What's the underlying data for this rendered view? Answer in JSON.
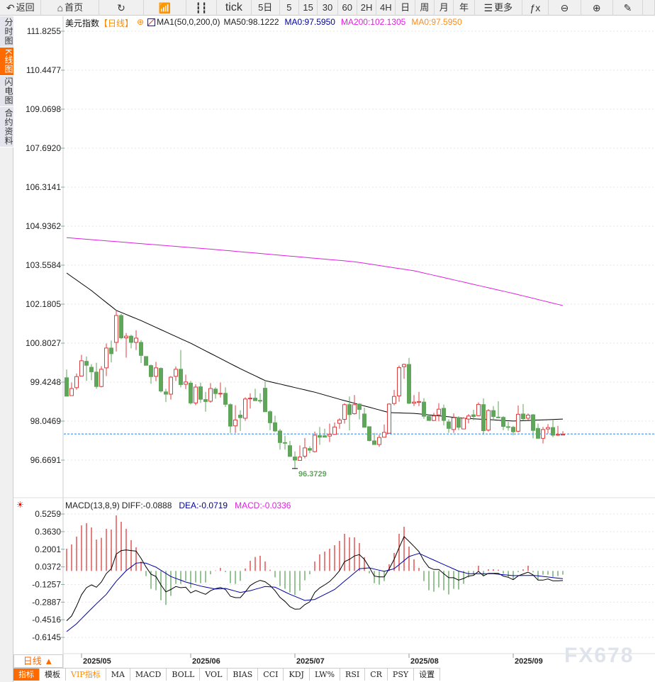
{
  "toolbar": {
    "items": [
      {
        "icon": "back-arrow-icon",
        "label": "返回",
        "w": 60
      },
      {
        "icon": "home-icon",
        "label": "首页",
        "w": 84
      },
      {
        "icon": "refresh-icon",
        "label": "",
        "w": 64
      },
      {
        "icon": "bar-chart-icon",
        "label": "",
        "w": 62
      },
      {
        "icon": "candlestick-icon",
        "label": "",
        "w": 44
      },
      {
        "icon": "",
        "label": "tick",
        "w": 50
      },
      {
        "icon": "",
        "label": "5日",
        "w": 41
      },
      {
        "icon": "",
        "label": "5",
        "w": 28
      },
      {
        "icon": "",
        "label": "15",
        "w": 27
      },
      {
        "icon": "",
        "label": "30",
        "w": 29
      },
      {
        "icon": "",
        "label": "60",
        "w": 28
      },
      {
        "icon": "",
        "label": "2H",
        "w": 28
      },
      {
        "icon": "",
        "label": "4H",
        "w": 28
      },
      {
        "icon": "",
        "label": "日",
        "w": 28
      },
      {
        "icon": "",
        "label": "周",
        "w": 28
      },
      {
        "icon": "",
        "label": "月",
        "w": 28
      },
      {
        "icon": "",
        "label": "年",
        "w": 30
      },
      {
        "icon": "menu-icon",
        "label": "更多",
        "w": 69
      },
      {
        "icon": "formula-icon",
        "label": "",
        "w": 38
      },
      {
        "icon": "zoom-out-icon",
        "label": "",
        "w": 47
      },
      {
        "icon": "zoom-in-icon",
        "label": "",
        "w": 46
      },
      {
        "icon": "pen-icon",
        "label": "",
        "w": 44
      },
      {
        "icon": "",
        "label": "",
        "w": 17
      }
    ]
  },
  "left_tabs": [
    {
      "label": "分时图",
      "active": false
    },
    {
      "label": "K线图",
      "active": true
    },
    {
      "label": "闪电图",
      "active": false
    },
    {
      "label": "合约资料",
      "active": false
    }
  ],
  "legend": {
    "name": "美元指数",
    "period": "【日线】",
    "indicator": "MA1(50,0,200,0)",
    "ma50": "MA50:98.1222",
    "ma0a": "MA0:97.5950",
    "ma200": "MA200:102.1305",
    "ma0b": "MA0:97.5950"
  },
  "macd_legend": {
    "name": "MACD(13,8,9)",
    "diff": "DIFF:-0.0888",
    "dea": "DEA:-0.0719",
    "macd": "MACD:-0.0336"
  },
  "colors": {
    "up": "#dc3c3c",
    "down": "#5fa55a",
    "ma50": "#000000",
    "ma200": "#e020e0",
    "diff": "#000000",
    "dea": "#0000a0",
    "last_price_line": "#1e82ff",
    "ma0b": "#ff8c1a"
  },
  "period_selector": "日线 ▲",
  "bottom_tabs": [
    {
      "label": "指标",
      "active": true
    },
    {
      "label": "模板"
    },
    {
      "label": "VIP指标",
      "vip": true
    },
    {
      "label": "MA"
    },
    {
      "label": "MACD"
    },
    {
      "label": "BOLL"
    },
    {
      "label": "VOL"
    },
    {
      "label": "BIAS"
    },
    {
      "label": "CCI"
    },
    {
      "label": "KDJ"
    },
    {
      "label": "LW%"
    },
    {
      "label": "RSI"
    },
    {
      "label": "CR"
    },
    {
      "label": "PSY"
    },
    {
      "label": "设置"
    }
  ],
  "watermark": "FX678",
  "chart_data": {
    "type": "candlestick",
    "price_ticks": [
      "111.8255",
      "110.4477",
      "109.0698",
      "107.6920",
      "106.3141",
      "104.9362",
      "103.5584",
      "102.1805",
      "100.8027",
      "99.4248",
      "98.0469",
      "96.6691"
    ],
    "macd_ticks": [
      "0.5259",
      "0.3630",
      "0.2001",
      "0.0372",
      "-0.1257",
      "-0.2887",
      "-0.4516",
      "-0.6145"
    ],
    "date_labels": [
      {
        "label": "2025/05",
        "index": 3
      },
      {
        "label": "2025/06",
        "index": 25
      },
      {
        "label": "2025/07",
        "index": 46
      },
      {
        "label": "2025/08",
        "index": 69
      },
      {
        "label": "2025/09",
        "index": 90
      }
    ],
    "low_label": {
      "text": "96.3729",
      "index": 46,
      "value": 96.3729
    },
    "last_price": 97.595,
    "ohlc": [
      [
        99.58,
        99.87,
        98.93,
        98.93
      ],
      [
        98.95,
        99.41,
        98.95,
        99.2
      ],
      [
        99.23,
        99.73,
        99.16,
        99.62
      ],
      [
        99.64,
        100.39,
        99.64,
        100.18
      ],
      [
        100.16,
        100.33,
        99.47,
        100.02
      ],
      [
        99.95,
        100.06,
        99.49,
        99.79
      ],
      [
        99.78,
        100.11,
        99.19,
        99.27
      ],
      [
        99.27,
        99.99,
        99.24,
        99.88
      ],
      [
        99.93,
        100.79,
        99.64,
        100.63
      ],
      [
        100.63,
        100.89,
        100.12,
        100.43
      ],
      [
        100.83,
        101.98,
        100.51,
        101.78
      ],
      [
        101.78,
        101.84,
        100.94,
        100.99
      ],
      [
        100.99,
        101.16,
        100.29,
        101.05
      ],
      [
        101.05,
        101.1,
        100.62,
        100.83
      ],
      [
        100.83,
        101.26,
        100.56,
        100.98
      ],
      [
        100.83,
        100.91,
        100.1,
        100.37
      ],
      [
        100.33,
        100.33,
        100.02,
        100.02
      ],
      [
        100.01,
        100.05,
        99.37,
        99.62
      ],
      [
        99.63,
        100.14,
        99.46,
        99.93
      ],
      [
        99.91,
        99.95,
        99.06,
        99.11
      ],
      [
        99.08,
        99.19,
        98.72,
        99.0
      ],
      [
        99.0,
        99.64,
        98.81,
        99.6
      ],
      [
        99.63,
        99.98,
        99.47,
        99.88
      ],
      [
        99.88,
        100.56,
        99.24,
        99.34
      ],
      [
        99.35,
        99.69,
        99.18,
        99.43
      ],
      [
        99.39,
        99.47,
        98.64,
        98.69
      ],
      [
        98.69,
        99.35,
        98.61,
        99.25
      ],
      [
        99.26,
        99.41,
        98.69,
        98.82
      ],
      [
        98.81,
        99.08,
        98.38,
        98.74
      ],
      [
        98.75,
        99.39,
        98.7,
        99.2
      ],
      [
        99.18,
        99.24,
        98.84,
        99.02
      ],
      [
        99.02,
        99.41,
        98.88,
        99.03
      ],
      [
        99.03,
        99.24,
        98.55,
        98.64
      ],
      [
        98.63,
        98.68,
        97.63,
        97.87
      ],
      [
        97.88,
        98.61,
        97.63,
        98.09
      ],
      [
        98.26,
        98.43,
        97.7,
        98.17
      ],
      [
        98.15,
        98.89,
        98.06,
        98.83
      ],
      [
        98.84,
        99.03,
        98.49,
        98.86
      ],
      [
        98.86,
        99.19,
        98.77,
        98.77
      ],
      [
        98.78,
        99.03,
        98.68,
        98.76
      ],
      [
        99.21,
        99.45,
        98.37,
        98.38
      ],
      [
        98.38,
        98.43,
        97.73,
        97.99
      ],
      [
        97.99,
        98.24,
        97.66,
        97.7
      ],
      [
        97.7,
        97.77,
        97.04,
        97.29
      ],
      [
        97.29,
        97.53,
        97.04,
        97.27
      ],
      [
        97.18,
        97.35,
        96.8,
        96.8
      ],
      [
        96.78,
        96.98,
        96.37,
        96.67
      ],
      [
        96.66,
        97.19,
        96.66,
        96.78
      ],
      [
        96.81,
        97.45,
        96.73,
        97.1
      ],
      [
        97.08,
        97.16,
        96.91,
        97.02
      ],
      [
        96.97,
        97.68,
        96.94,
        97.55
      ],
      [
        97.54,
        97.84,
        97.21,
        97.48
      ],
      [
        97.53,
        97.78,
        97.48,
        97.48
      ],
      [
        97.52,
        97.96,
        97.31,
        97.58
      ],
      [
        97.58,
        98.0,
        97.57,
        97.84
      ],
      [
        97.97,
        98.15,
        97.78,
        98.09
      ],
      [
        98.11,
        98.68,
        97.96,
        98.63
      ],
      [
        98.63,
        98.92,
        97.72,
        98.28
      ],
      [
        98.31,
        98.97,
        98.28,
        98.63
      ],
      [
        98.65,
        98.68,
        98.11,
        98.46
      ],
      [
        98.3,
        98.52,
        97.83,
        97.83
      ],
      [
        97.85,
        97.85,
        97.33,
        97.36
      ],
      [
        97.35,
        97.63,
        97.22,
        97.22
      ],
      [
        97.22,
        97.57,
        97.14,
        97.47
      ],
      [
        97.48,
        97.93,
        97.47,
        97.65
      ],
      [
        97.62,
        98.68,
        97.6,
        98.65
      ],
      [
        98.67,
        99.15,
        98.61,
        98.92
      ],
      [
        98.94,
        100.01,
        98.73,
        99.94
      ],
      [
        99.97,
        100.08,
        99.54,
        100.05
      ],
      [
        100.05,
        100.28,
        98.65,
        98.68
      ],
      [
        98.68,
        98.97,
        98.58,
        98.72
      ],
      [
        98.71,
        99.08,
        98.58,
        98.74
      ],
      [
        98.72,
        98.86,
        98.13,
        98.22
      ],
      [
        98.22,
        98.28,
        98.07,
        98.07
      ],
      [
        98.07,
        98.34,
        98.05,
        98.23
      ],
      [
        98.27,
        98.68,
        98.04,
        98.47
      ],
      [
        98.5,
        98.63,
        97.9,
        98.07
      ],
      [
        98.02,
        98.11,
        97.63,
        97.79
      ],
      [
        97.75,
        98.32,
        97.63,
        98.17
      ],
      [
        98.17,
        98.22,
        97.73,
        97.83
      ],
      [
        97.77,
        98.19,
        97.77,
        98.15
      ],
      [
        98.12,
        98.3,
        97.97,
        98.23
      ],
      [
        98.27,
        98.45,
        98.08,
        98.21
      ],
      [
        98.24,
        98.71,
        98.22,
        98.64
      ],
      [
        98.63,
        98.85,
        97.57,
        97.71
      ],
      [
        97.73,
        98.47,
        97.68,
        98.42
      ],
      [
        98.42,
        98.58,
        98.08,
        98.21
      ],
      [
        98.19,
        98.75,
        98.15,
        98.18
      ],
      [
        98.18,
        98.22,
        97.73,
        97.86
      ],
      [
        97.85,
        98.02,
        97.71,
        97.83
      ],
      [
        97.83,
        97.88,
        97.55,
        97.67
      ],
      [
        97.69,
        98.6,
        97.65,
        98.29
      ],
      [
        98.3,
        98.65,
        98.07,
        98.13
      ],
      [
        98.15,
        98.32,
        98.09,
        98.26
      ],
      [
        98.27,
        98.3,
        97.44,
        97.72
      ],
      [
        97.79,
        97.96,
        97.44,
        97.44
      ],
      [
        97.44,
        97.84,
        97.26,
        97.75
      ],
      [
        97.77,
        97.94,
        97.61,
        97.82
      ],
      [
        97.82,
        98.08,
        97.48,
        97.55
      ],
      [
        97.55,
        97.88,
        97.52,
        97.58
      ],
      [
        97.57,
        97.69,
        97.57,
        97.58
      ]
    ],
    "ma50": [
      [
        0,
        103.28
      ],
      [
        5,
        102.66
      ],
      [
        10,
        101.96
      ],
      [
        15,
        101.6
      ],
      [
        25,
        100.8
      ],
      [
        35,
        99.9
      ],
      [
        40,
        99.48
      ],
      [
        50,
        99.07
      ],
      [
        55,
        98.82
      ],
      [
        65,
        98.35
      ],
      [
        70,
        98.32
      ],
      [
        80,
        98.15
      ],
      [
        90,
        98.05
      ],
      [
        100,
        98.12
      ]
    ],
    "ma200": [
      [
        0,
        104.53
      ],
      [
        30,
        104.11
      ],
      [
        58,
        103.68
      ],
      [
        70,
        103.36
      ],
      [
        80,
        102.96
      ],
      [
        90,
        102.56
      ],
      [
        100,
        102.13
      ]
    ],
    "macd_hist": [
      0.205,
      0.245,
      0.317,
      0.421,
      0.441,
      0.402,
      0.29,
      0.306,
      0.389,
      0.382,
      0.513,
      0.454,
      0.389,
      0.284,
      0.218,
      0.087,
      -0.048,
      -0.166,
      -0.179,
      -0.271,
      -0.314,
      -0.231,
      -0.12,
      -0.12,
      -0.092,
      -0.157,
      -0.107,
      -0.114,
      -0.107,
      -0.031,
      0.004,
      0.028,
      -0.011,
      -0.114,
      -0.12,
      -0.092,
      0.022,
      0.094,
      0.129,
      0.14,
      0.087,
      0.011,
      -0.059,
      -0.14,
      -0.166,
      -0.199,
      -0.223,
      -0.183,
      -0.087,
      -0.031,
      0.087,
      0.153,
      0.179,
      0.205,
      0.238,
      0.277,
      0.343,
      0.31,
      0.31,
      0.258,
      0.127,
      -0.022,
      -0.114,
      -0.127,
      -0.094,
      0.061,
      0.166,
      0.343,
      0.408,
      0.225,
      0.107,
      0.028,
      -0.094,
      -0.179,
      -0.192,
      -0.153,
      -0.179,
      -0.218,
      -0.166,
      -0.172,
      -0.12,
      -0.061,
      -0.035,
      0.048,
      -0.048,
      0.015,
      0.015,
      0.011,
      -0.026,
      -0.061,
      -0.081,
      -0.011,
      0.015,
      0.048,
      -0.013,
      -0.081,
      -0.035,
      -0.035,
      -0.055,
      -0.048,
      -0.034
    ],
    "diff": [
      -0.461,
      -0.417,
      -0.325,
      -0.22,
      -0.155,
      -0.129,
      -0.151,
      -0.103,
      -0.024,
      0.02,
      0.155,
      0.188,
      0.194,
      0.188,
      0.183,
      0.116,
      0.037,
      -0.031,
      -0.052,
      -0.129,
      -0.194,
      -0.172,
      -0.144,
      -0.155,
      -0.151,
      -0.203,
      -0.181,
      -0.199,
      -0.216,
      -0.183,
      -0.164,
      -0.153,
      -0.172,
      -0.234,
      -0.247,
      -0.247,
      -0.194,
      -0.135,
      -0.107,
      -0.087,
      -0.1,
      -0.135,
      -0.183,
      -0.245,
      -0.282,
      -0.33,
      -0.354,
      -0.352,
      -0.312,
      -0.286,
      -0.199,
      -0.157,
      -0.129,
      -0.098,
      -0.052,
      0.002,
      0.085,
      0.107,
      0.138,
      0.151,
      0.107,
      0.033,
      -0.048,
      -0.055,
      -0.055,
      0.02,
      0.107,
      0.214,
      0.317,
      0.273,
      0.227,
      0.179,
      0.094,
      0.033,
      0.013,
      0.013,
      -0.026,
      -0.063,
      -0.063,
      -0.085,
      -0.07,
      -0.048,
      -0.041,
      -0.004,
      -0.046,
      -0.022,
      -0.022,
      -0.022,
      -0.048,
      -0.059,
      -0.081,
      -0.046,
      -0.028,
      -0.011,
      -0.037,
      -0.085,
      -0.085,
      -0.074,
      -0.092,
      -0.092,
      -0.089
    ],
    "dea": [
      [
        0,
        -0.561
      ],
      [
        2,
        -0.489
      ],
      [
        4,
        -0.395
      ],
      [
        6,
        -0.304
      ],
      [
        8,
        -0.216
      ],
      [
        10,
        -0.096
      ],
      [
        12,
        0.002
      ],
      [
        14,
        0.072
      ],
      [
        15.6,
        0.079
      ],
      [
        18,
        0.035
      ],
      [
        21,
        -0.052
      ],
      [
        24,
        -0.103
      ],
      [
        27,
        -0.14
      ],
      [
        30,
        -0.168
      ],
      [
        32,
        -0.162
      ],
      [
        35,
        -0.199
      ],
      [
        37,
        -0.183
      ],
      [
        40,
        -0.144
      ],
      [
        42,
        -0.151
      ],
      [
        45,
        -0.216
      ],
      [
        48,
        -0.273
      ],
      [
        50,
        -0.264
      ],
      [
        54,
        -0.172
      ],
      [
        59,
        0.02
      ],
      [
        61,
        0.028
      ],
      [
        64,
        -0.004
      ],
      [
        66,
        0.02
      ],
      [
        69,
        0.133
      ],
      [
        71,
        0.162
      ],
      [
        74,
        0.1
      ],
      [
        79,
        -0.002
      ],
      [
        81,
        -0.026
      ],
      [
        86,
        -0.026
      ],
      [
        90,
        -0.044
      ],
      [
        94,
        -0.041
      ],
      [
        100,
        -0.072
      ]
    ]
  }
}
